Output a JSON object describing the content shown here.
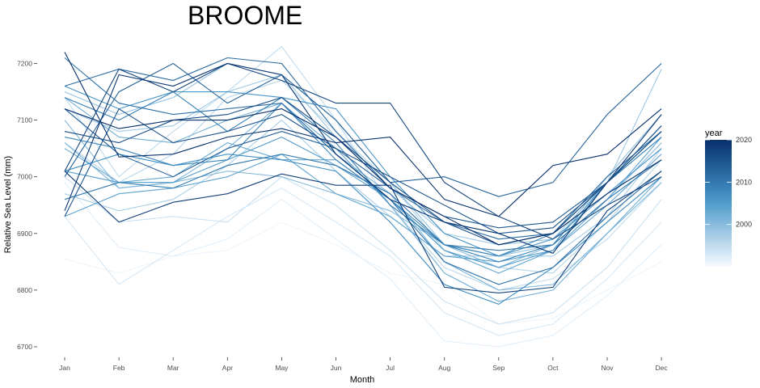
{
  "chart_data": {
    "type": "line",
    "title": "BROOME",
    "xlabel": "Month",
    "ylabel": "Relative Sea Level (mm)",
    "ylim": [
      6690,
      7240
    ],
    "yticks": [
      6700,
      6800,
      6900,
      7000,
      7100,
      7200
    ],
    "categories": [
      "Jan",
      "Feb",
      "Mar",
      "Apr",
      "May",
      "Jun",
      "Jul",
      "Aug",
      "Sep",
      "Oct",
      "Nov",
      "Dec"
    ],
    "grid": false,
    "legend": {
      "title": "year",
      "position": "right",
      "ticks": [
        2000,
        2010,
        2020
      ],
      "range": [
        1990,
        2020
      ],
      "color_low": "#f7fbff",
      "color_high": "#08306b"
    },
    "series": [
      {
        "year": 1991,
        "values": [
          6855,
          6830,
          6860,
          6870,
          6920,
          6880,
          6830,
          6810,
          6740,
          6750,
          6800,
          6850
        ]
      },
      {
        "year": 1992,
        "values": [
          6990,
          6875,
          6860,
          6890,
          6960,
          6890,
          6820,
          6710,
          6700,
          6720,
          6790,
          6880
        ]
      },
      {
        "year": 1993,
        "values": [
          6930,
          6810,
          6870,
          6930,
          6980,
          6920,
          6860,
          6760,
          6720,
          6740,
          6820,
          6920
        ]
      },
      {
        "year": 1994,
        "values": [
          7000,
          6920,
          6930,
          6920,
          7000,
          6950,
          6870,
          6780,
          6740,
          6760,
          6840,
          6960
        ]
      },
      {
        "year": 1995,
        "values": [
          7140,
          7000,
          7080,
          7150,
          7230,
          7100,
          6950,
          6840,
          6800,
          6820,
          6890,
          6990
        ]
      },
      {
        "year": 1996,
        "values": [
          7060,
          6990,
          7040,
          7140,
          7170,
          7080,
          6990,
          6870,
          6840,
          6830,
          6920,
          7030
        ]
      },
      {
        "year": 1997,
        "values": [
          6970,
          6940,
          6960,
          7020,
          7100,
          7010,
          6930,
          6860,
          6860,
          6860,
          6930,
          7050
        ]
      },
      {
        "year": 1998,
        "values": [
          7120,
          7080,
          7090,
          7150,
          7180,
          7070,
          6980,
          6900,
          6880,
          6890,
          6990,
          7190
        ]
      },
      {
        "year": 1999,
        "values": [
          7150,
          7110,
          7140,
          7200,
          7180,
          7100,
          6990,
          6880,
          6860,
          6880,
          7000,
          7110
        ]
      },
      {
        "year": 2000,
        "values": [
          7100,
          6980,
          6990,
          7010,
          7000,
          6970,
          6940,
          6880,
          6840,
          6880,
          6960,
          7060
        ]
      },
      {
        "year": 2001,
        "values": [
          7060,
          6980,
          6990,
          7050,
          7130,
          7040,
          6970,
          6850,
          6800,
          6810,
          6900,
          6990
        ]
      },
      {
        "year": 2002,
        "values": [
          7140,
          7070,
          7060,
          7100,
          7130,
          7050,
          6950,
          6830,
          6780,
          6800,
          6900,
          7000
        ]
      },
      {
        "year": 2003,
        "values": [
          7050,
          6990,
          7000,
          7060,
          7030,
          7030,
          6960,
          6870,
          6830,
          6870,
          6950,
          7040
        ]
      },
      {
        "year": 2004,
        "values": [
          6930,
          6970,
          6980,
          7000,
          7040,
          6970,
          6930,
          6860,
          6850,
          6870,
          6960,
          7070
        ]
      },
      {
        "year": 2005,
        "values": [
          7010,
          6990,
          6990,
          7030,
          7070,
          7020,
          6960,
          6870,
          6840,
          6870,
          6990,
          7080
        ]
      },
      {
        "year": 2006,
        "values": [
          7160,
          7120,
          7150,
          7150,
          7140,
          7120,
          7000,
          6900,
          6860,
          6890,
          6970,
          7050
        ]
      },
      {
        "year": 2007,
        "values": [
          7010,
          7040,
          7020,
          7040,
          7030,
          7010,
          6920,
          6810,
          6775,
          6840,
          6920,
          7000
        ]
      },
      {
        "year": 2008,
        "values": [
          7070,
          7050,
          7020,
          7030,
          7130,
          7030,
          6960,
          6880,
          6850,
          6880,
          6990,
          7080
        ]
      },
      {
        "year": 2009,
        "values": [
          7140,
          7100,
          7150,
          7080,
          7140,
          7060,
          6950,
          6880,
          6860,
          6900,
          6990,
          7070
        ]
      },
      {
        "year": 2010,
        "values": [
          6960,
          6990,
          6980,
          7020,
          7040,
          7020,
          6970,
          6880,
          6870,
          6880,
          6960,
          7030
        ]
      },
      {
        "year": 2011,
        "values": [
          7210,
          7130,
          7110,
          7120,
          7130,
          7040,
          6960,
          6850,
          6810,
          6840,
          6930,
          7010
        ]
      },
      {
        "year": 2012,
        "values": [
          7160,
          7190,
          7170,
          7210,
          7200,
          7080,
          6980,
          6920,
          6890,
          6900,
          7000,
          7080
        ]
      },
      {
        "year": 2013,
        "values": [
          7000,
          7150,
          7200,
          7130,
          7180,
          7100,
          6990,
          7000,
          6965,
          6990,
          7110,
          7200
        ]
      },
      {
        "year": 2014,
        "values": [
          7120,
          7040,
          7000,
          7050,
          7080,
          7050,
          6980,
          6930,
          6910,
          6920,
          6990,
          7090
        ]
      },
      {
        "year": 2015,
        "values": [
          6930,
          7120,
          7060,
          7080,
          7110,
          7050,
          7000,
          6950,
          6900,
          6910,
          6990,
          7090
        ]
      },
      {
        "year": 2016,
        "values": [
          7080,
          7060,
          7100,
          7110,
          7140,
          7070,
          6990,
          6920,
          6880,
          6900,
          6990,
          7080
        ]
      },
      {
        "year": 2017,
        "values": [
          7010,
          7190,
          7150,
          7200,
          7170,
          7130,
          7130,
          6990,
          6930,
          6890,
          6950,
          7000
        ]
      },
      {
        "year": 2018,
        "values": [
          7010,
          6920,
          6955,
          6970,
          7005,
          6985,
          6985,
          6805,
          6795,
          6805,
          6940,
          7010
        ]
      },
      {
        "year": 2019,
        "values": [
          6940,
          7180,
          7160,
          7200,
          7180,
          7040,
          6960,
          6920,
          6900,
          6865,
          6990,
          7110
        ]
      },
      {
        "year": 2020,
        "values": [
          7220,
          7035,
          7040,
          7070,
          7085,
          7060,
          7070,
          6960,
          6930,
          7020,
          7040,
          7120
        ]
      },
      {
        "year": 2021,
        "values": [
          7120,
          7085,
          7100,
          7100,
          7120,
          7070,
          6980,
          6930,
          6880,
          6900,
          6970,
          7030
        ]
      }
    ]
  }
}
